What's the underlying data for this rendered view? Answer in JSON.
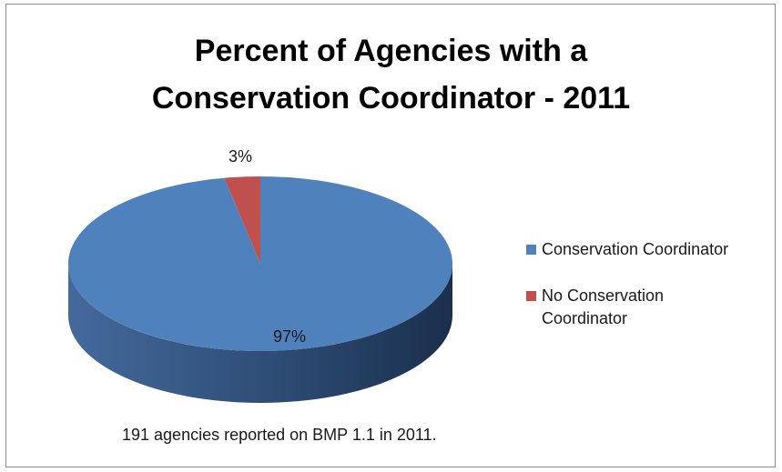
{
  "chart_data": {
    "type": "pie",
    "title_lines": [
      "Percent of Agencies with a",
      "Conservation Coordinator  - 2011"
    ],
    "slices": [
      {
        "label": "Conservation Coordinator",
        "value": 97,
        "data_label": "97%",
        "color": "#4f81bd"
      },
      {
        "label": "No Conservation Coordinator",
        "value": 3,
        "data_label": "3%",
        "color": "#c0504d"
      }
    ],
    "legend_position": "right",
    "three_d": true,
    "footnote": "191 agencies reported on BMP 1.1 in 2011."
  }
}
